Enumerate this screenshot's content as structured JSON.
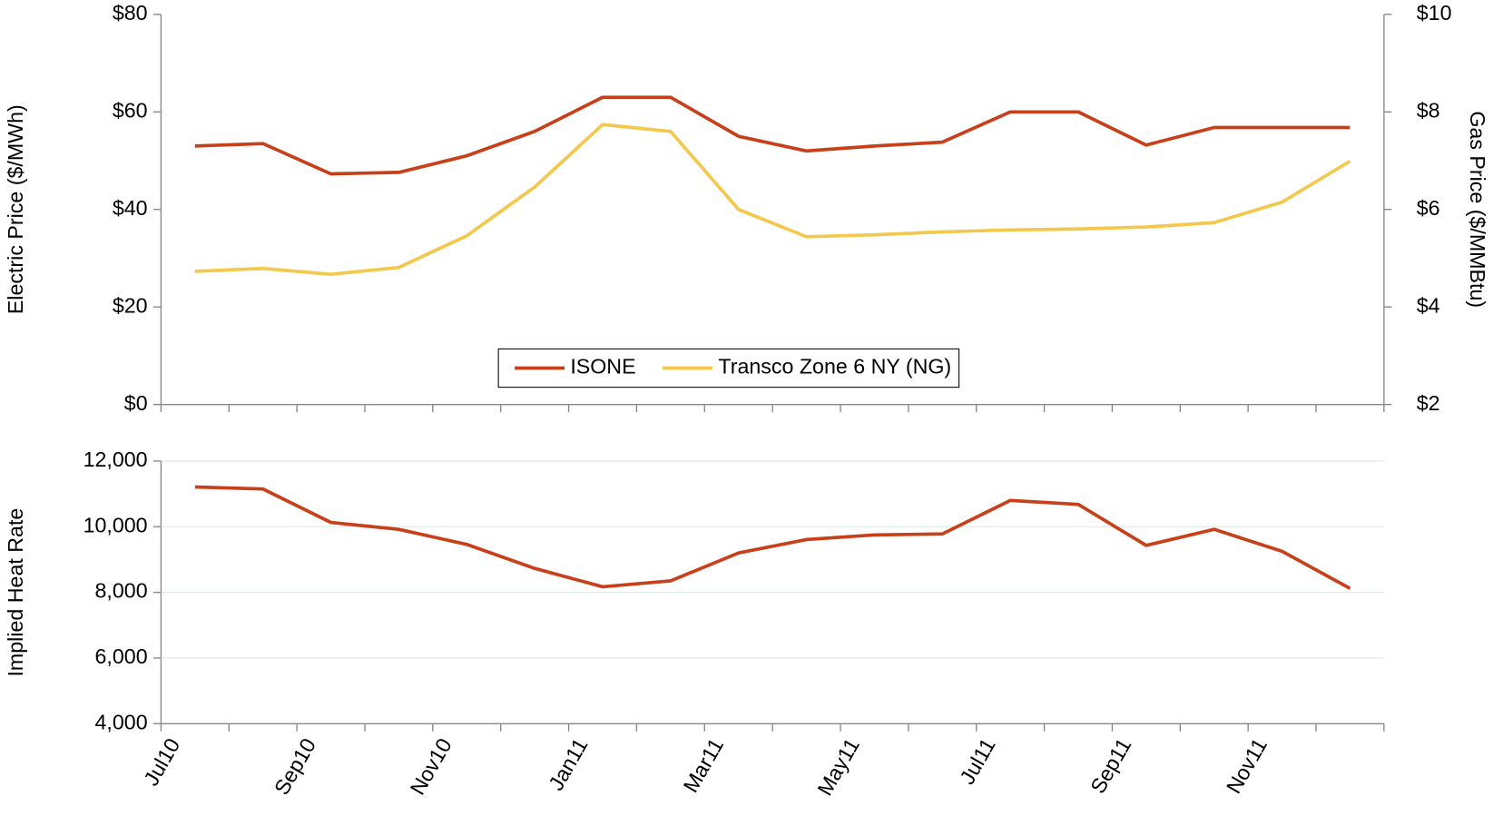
{
  "chart_data": [
    {
      "type": "line",
      "ylabel": "Electric Price ($/MWh)",
      "y2label": "Gas Price ($/MMBtu)",
      "ylim": [
        0,
        80
      ],
      "yticks": [
        {
          "value": 0,
          "label": "$0"
        },
        {
          "value": 20,
          "label": "$20"
        },
        {
          "value": 40,
          "label": "$40"
        },
        {
          "value": 60,
          "label": "$60"
        },
        {
          "value": 80,
          "label": "$80"
        }
      ],
      "y2lim": [
        2,
        10
      ],
      "y2ticks": [
        {
          "value": 2,
          "label": "$2"
        },
        {
          "value": 4,
          "label": "$4"
        },
        {
          "value": 6,
          "label": "$6"
        },
        {
          "value": 8,
          "label": "$8"
        },
        {
          "value": 10,
          "label": "$10"
        }
      ],
      "legend": "bottom",
      "grid": false,
      "series": [
        {
          "name": "ISONE",
          "color": "#c8401a",
          "values": [
            53,
            53.5,
            47.3,
            47.6,
            51,
            56,
            63,
            63,
            55,
            52,
            53,
            53.8,
            60,
            60,
            53.2,
            56.8,
            56.8,
            56.8
          ]
        },
        {
          "name": "Transco Zone 6 NY (NG)",
          "color": "#f2c94c",
          "axis": "y2",
          "values": [
            4.73,
            4.79,
            4.67,
            4.81,
            5.46,
            6.46,
            7.74,
            7.6,
            6.0,
            5.44,
            5.48,
            5.54,
            5.58,
            5.6,
            5.64,
            5.73,
            6.15,
            6.99
          ]
        }
      ]
    },
    {
      "type": "line",
      "ylabel": "Implied Heat Rate",
      "ylim": [
        4000,
        12000
      ],
      "yticks": [
        {
          "value": 4000,
          "label": "4,000"
        },
        {
          "value": 6000,
          "label": "6,000"
        },
        {
          "value": 8000,
          "label": "8,000"
        },
        {
          "value": 10000,
          "label": "10,000"
        },
        {
          "value": 12000,
          "label": "12,000"
        }
      ],
      "grid": true,
      "categories": [
        "Jul10",
        null,
        "Sep10",
        null,
        "Nov10",
        null,
        "Jan11",
        null,
        "Mar11",
        null,
        "May11",
        null,
        "Jul11",
        null,
        "Sep11",
        null,
        "Nov11",
        null
      ],
      "color": "#c8401a",
      "values": [
        11210,
        11150,
        10130,
        9920,
        9460,
        8730,
        8170,
        8350,
        9200,
        9610,
        9750,
        9780,
        10800,
        10680,
        9430,
        9920,
        9250,
        8120
      ]
    }
  ]
}
